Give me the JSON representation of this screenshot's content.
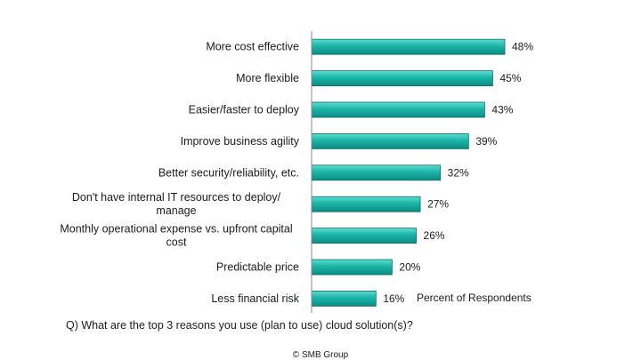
{
  "chart_data": {
    "type": "bar",
    "orientation": "horizontal",
    "categories": [
      [
        "More cost effective"
      ],
      [
        "More flexible"
      ],
      [
        "Easier/faster to deploy"
      ],
      [
        "Improve business agility"
      ],
      [
        "Better security/reliability, etc."
      ],
      [
        "Don't have internal IT resources to deploy/",
        "manage"
      ],
      [
        "Monthly operational expense vs. upfront capital",
        "cost"
      ],
      [
        "Predictable price"
      ],
      [
        "Less financial risk"
      ]
    ],
    "values": [
      48,
      45,
      43,
      39,
      32,
      27,
      26,
      20,
      16
    ],
    "value_labels": [
      "48%",
      "45%",
      "43%",
      "39%",
      "32%",
      "27%",
      "26%",
      "20%",
      "16%"
    ],
    "xlabel": "Percent of Respondents",
    "xlim": [
      0,
      48
    ],
    "grid": false,
    "bar_color": "#1ab5a8"
  },
  "question": "Q) What are the top 3 reasons you use (plan to use) cloud solution(s)?",
  "copyright": "© SMB Group"
}
